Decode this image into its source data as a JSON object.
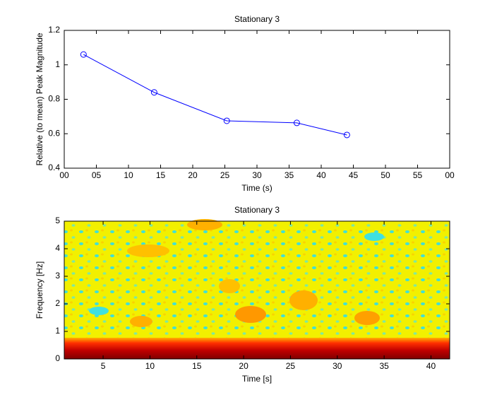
{
  "chart_data": [
    {
      "type": "line",
      "title": "Stationary 3",
      "x_label": "Time (s)",
      "y_label": "Relative (to mean) Peak Magnitude",
      "x": [
        3,
        14,
        25.3,
        36.2,
        44
      ],
      "series": [
        {
          "color": "#0000ff",
          "values": [
            1.06,
            0.84,
            0.675,
            0.663,
            0.593
          ]
        }
      ],
      "xlim": [
        0,
        60
      ],
      "xticks": [
        {
          "value": 0,
          "label": "00"
        },
        {
          "value": 5,
          "label": "05"
        },
        10,
        15,
        20,
        25,
        30,
        35,
        40,
        45,
        50,
        55,
        {
          "value": 60,
          "label": "00"
        }
      ],
      "ylim": [
        0.4,
        1.2
      ],
      "yticks": [
        0.4,
        0.6,
        0.8,
        1,
        1.2
      ]
    },
    {
      "type": "heatmap",
      "title": "Stationary 3",
      "x_label": "Time [s]",
      "y_label": "Frequency [Hz]",
      "xlim": [
        0.85,
        42
      ],
      "xticks": [
        5,
        10,
        15,
        20,
        25,
        30,
        35,
        40
      ],
      "ylim": [
        0,
        5
      ],
      "yticks": [
        0,
        1,
        2,
        3,
        4,
        5
      ]
    }
  ]
}
